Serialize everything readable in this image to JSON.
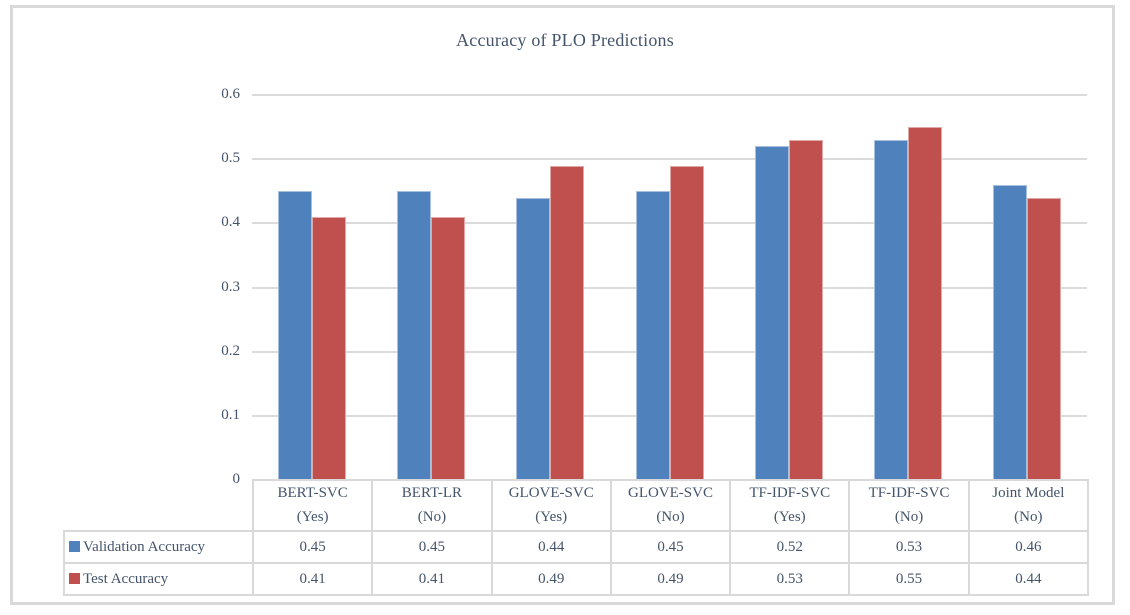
{
  "chart_data": {
    "type": "bar",
    "title": "Accuracy of PLO Predictions",
    "categories": [
      {
        "label": "BERT-SVC",
        "sub": "(Yes)"
      },
      {
        "label": "BERT-LR",
        "sub": "(No)"
      },
      {
        "label": "GLOVE-SVC",
        "sub": "(Yes)"
      },
      {
        "label": "GLOVE-SVC",
        "sub": "(No)"
      },
      {
        "label": "TF-IDF-SVC",
        "sub": "(Yes)"
      },
      {
        "label": "TF-IDF-SVC",
        "sub": "(No)"
      },
      {
        "label": "Joint Model",
        "sub": "(No)"
      }
    ],
    "series": [
      {
        "name": "Validation Accuracy",
        "color": "#4F81BD",
        "values": [
          0.45,
          0.45,
          0.44,
          0.45,
          0.52,
          0.53,
          0.46
        ]
      },
      {
        "name": "Test Accuracy",
        "color": "#C0504D",
        "values": [
          0.41,
          0.41,
          0.49,
          0.49,
          0.53,
          0.55,
          0.44
        ]
      }
    ],
    "xlabel": "",
    "ylabel": "",
    "ylim": [
      0,
      0.6
    ],
    "yticks": [
      "0",
      "0.1",
      "0.2",
      "0.3",
      "0.4",
      "0.5",
      "0.6"
    ],
    "grid": true,
    "legend_position": "table-rows-left",
    "colors": {
      "text": "#44546A",
      "gridline": "#DBDBDB",
      "frame_border": "#D9D9D9",
      "table_border": "#D9D9D9",
      "background": "#FFFFFF"
    }
  }
}
